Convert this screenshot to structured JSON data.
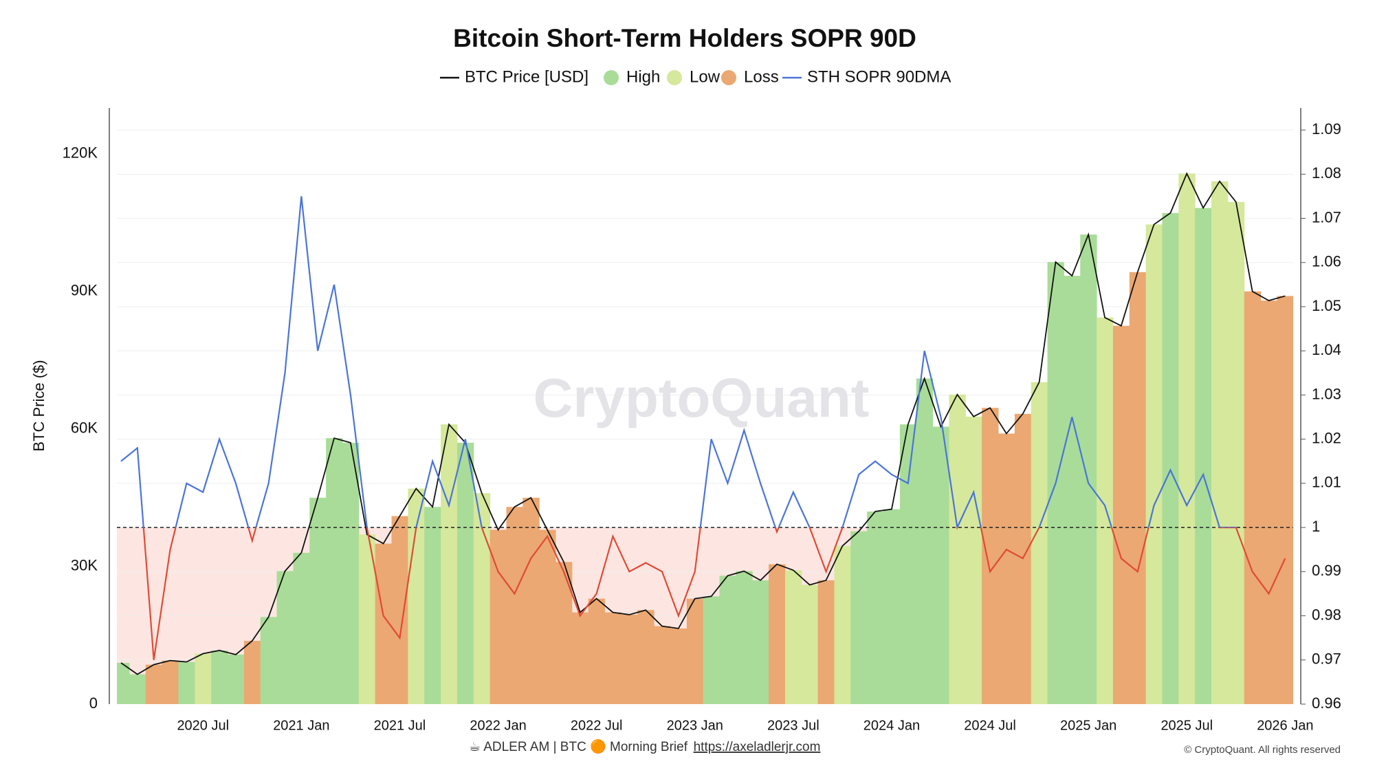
{
  "chart_data": {
    "type": "regime_area",
    "title": "Bitcoin Short-Term Holders SOPR 90D",
    "y_label": "BTC Price ($)",
    "watermark": "CryptoQuant",
    "footer": "☕ ADLER AM | BTC 🟠 Morning Brief",
    "footer_link": "https://axeladlerjr.com",
    "copyright": "© CryptoQuant. All rights reserved",
    "x": [
      "2020-02",
      "2020-03",
      "2020-04",
      "2020-05",
      "2020-06",
      "2020-07",
      "2020-08",
      "2020-09",
      "2020-10",
      "2020-11",
      "2020-12",
      "2021-01",
      "2021-02",
      "2021-03",
      "2021-04",
      "2021-05",
      "2021-06",
      "2021-07",
      "2021-08",
      "2021-09",
      "2021-10",
      "2021-11",
      "2021-12",
      "2022-01",
      "2022-02",
      "2022-03",
      "2022-04",
      "2022-05",
      "2022-06",
      "2022-07",
      "2022-08",
      "2022-09",
      "2022-10",
      "2022-11",
      "2022-12",
      "2023-01",
      "2023-02",
      "2023-03",
      "2023-04",
      "2023-05",
      "2023-06",
      "2023-07",
      "2023-08",
      "2023-09",
      "2023-10",
      "2023-11",
      "2023-12",
      "2024-01",
      "2024-02",
      "2024-03",
      "2024-04",
      "2024-05",
      "2024-06",
      "2024-07",
      "2024-08",
      "2024-09",
      "2024-10",
      "2024-11",
      "2024-12",
      "2025-01",
      "2025-02",
      "2025-03",
      "2025-04",
      "2025-05",
      "2025-06",
      "2025-07",
      "2025-08",
      "2025-09",
      "2025-10",
      "2025-11",
      "2025-12",
      "2026-01"
    ],
    "xticks": [
      {
        "value": "2020-07",
        "label": "2020 Jul"
      },
      {
        "value": "2021-01",
        "label": "2021 Jan"
      },
      {
        "value": "2021-07",
        "label": "2021 Jul"
      },
      {
        "value": "2022-01",
        "label": "2022 Jan"
      },
      {
        "value": "2022-07",
        "label": "2022 Jul"
      },
      {
        "value": "2023-01",
        "label": "2023 Jan"
      },
      {
        "value": "2023-07",
        "label": "2023 Jul"
      },
      {
        "value": "2024-01",
        "label": "2024 Jan"
      },
      {
        "value": "2024-07",
        "label": "2024 Jul"
      },
      {
        "value": "2025-01",
        "label": "2025 Jan"
      },
      {
        "value": "2025-07",
        "label": "2025 Jul"
      },
      {
        "value": "2026-01",
        "label": "2026 Jan"
      }
    ],
    "ylim": [
      0,
      130000
    ],
    "yticks": [
      0,
      {
        "value": 30000,
        "label": "30K"
      },
      {
        "value": 60000,
        "label": "60K"
      },
      {
        "value": 90000,
        "label": "90K"
      },
      {
        "value": 120000,
        "label": "120K"
      }
    ],
    "y2lim": [
      0.96,
      1.095
    ],
    "y2ticks": [
      0.96,
      0.97,
      0.98,
      0.99,
      1,
      1.01,
      1.02,
      1.03,
      1.04,
      1.05,
      1.06,
      1.07,
      1.08,
      1.09
    ],
    "threshold": 1,
    "series": [
      {
        "name": "BTC Price [USD]",
        "color": "#111111",
        "values": [
          9000,
          6500,
          8600,
          9500,
          9200,
          11000,
          11700,
          10800,
          13800,
          19000,
          29000,
          33000,
          45000,
          58000,
          57000,
          37000,
          35000,
          41000,
          47000,
          43000,
          61000,
          57000,
          46000,
          38000,
          43000,
          45000,
          38000,
          31000,
          20000,
          23000,
          20000,
          19500,
          20500,
          17000,
          16500,
          23000,
          23500,
          28000,
          29000,
          27000,
          30500,
          29200,
          26000,
          27000,
          34500,
          37700,
          42000,
          42500,
          61000,
          71000,
          60500,
          67500,
          62700,
          64600,
          59000,
          63300,
          70200,
          96400,
          93400,
          102400,
          84300,
          82500,
          94200,
          104600,
          107100,
          115700,
          108200,
          114000,
          109500,
          90000,
          88000,
          89000
        ]
      },
      {
        "name": "High",
        "color": "#a9dc98"
      },
      {
        "name": "Low",
        "color": "#d5e89c"
      },
      {
        "name": "Loss",
        "color": "#eba872"
      },
      {
        "name": "STH SOPR 90DMA",
        "color": "#4a74d9",
        "below_color": "#e04a36",
        "axis": "y2",
        "values": [
          1.015,
          1.018,
          0.97,
          0.995,
          1.01,
          1.008,
          1.02,
          1.01,
          0.997,
          1.01,
          1.035,
          1.075,
          1.04,
          1.055,
          1.03,
          1.0,
          0.98,
          0.975,
          1.0,
          1.015,
          1.005,
          1.02,
          1.0,
          0.99,
          0.985,
          0.993,
          0.998,
          0.99,
          0.98,
          0.985,
          0.998,
          0.99,
          0.992,
          0.99,
          0.98,
          0.99,
          1.02,
          1.01,
          1.022,
          1.01,
          0.999,
          1.008,
          1.0,
          0.99,
          1.0,
          1.012,
          1.015,
          1.012,
          1.01,
          1.04,
          1.025,
          1.0,
          1.008,
          0.99,
          0.995,
          0.993,
          1.0,
          1.01,
          1.025,
          1.01,
          1.005,
          0.993,
          0.99,
          1.005,
          1.013,
          1.005,
          1.012,
          1.0,
          1.0,
          0.99,
          0.985,
          0.993
        ]
      }
    ],
    "regime": [
      "High",
      "High",
      "Loss",
      "Loss",
      "High",
      "Low",
      "High",
      "High",
      "Loss",
      "High",
      "High",
      "High",
      "High",
      "High",
      "High",
      "Low",
      "Loss",
      "Loss",
      "Low",
      "High",
      "Low",
      "High",
      "Low",
      "Loss",
      "Loss",
      "Loss",
      "Loss",
      "Loss",
      "Loss",
      "Loss",
      "Loss",
      "Loss",
      "Loss",
      "Loss",
      "Loss",
      "Loss",
      "High",
      "High",
      "High",
      "High",
      "Loss",
      "Low",
      "Low",
      "Loss",
      "Low",
      "High",
      "High",
      "High",
      "High",
      "High",
      "High",
      "Low",
      "Low",
      "Loss",
      "Loss",
      "Loss",
      "Low",
      "High",
      "High",
      "High",
      "Low",
      "Loss",
      "Loss",
      "Low",
      "High",
      "Low",
      "High",
      "Low",
      "Low",
      "Loss",
      "Loss",
      "Loss"
    ],
    "threshold_fill": "#fde6e1"
  }
}
